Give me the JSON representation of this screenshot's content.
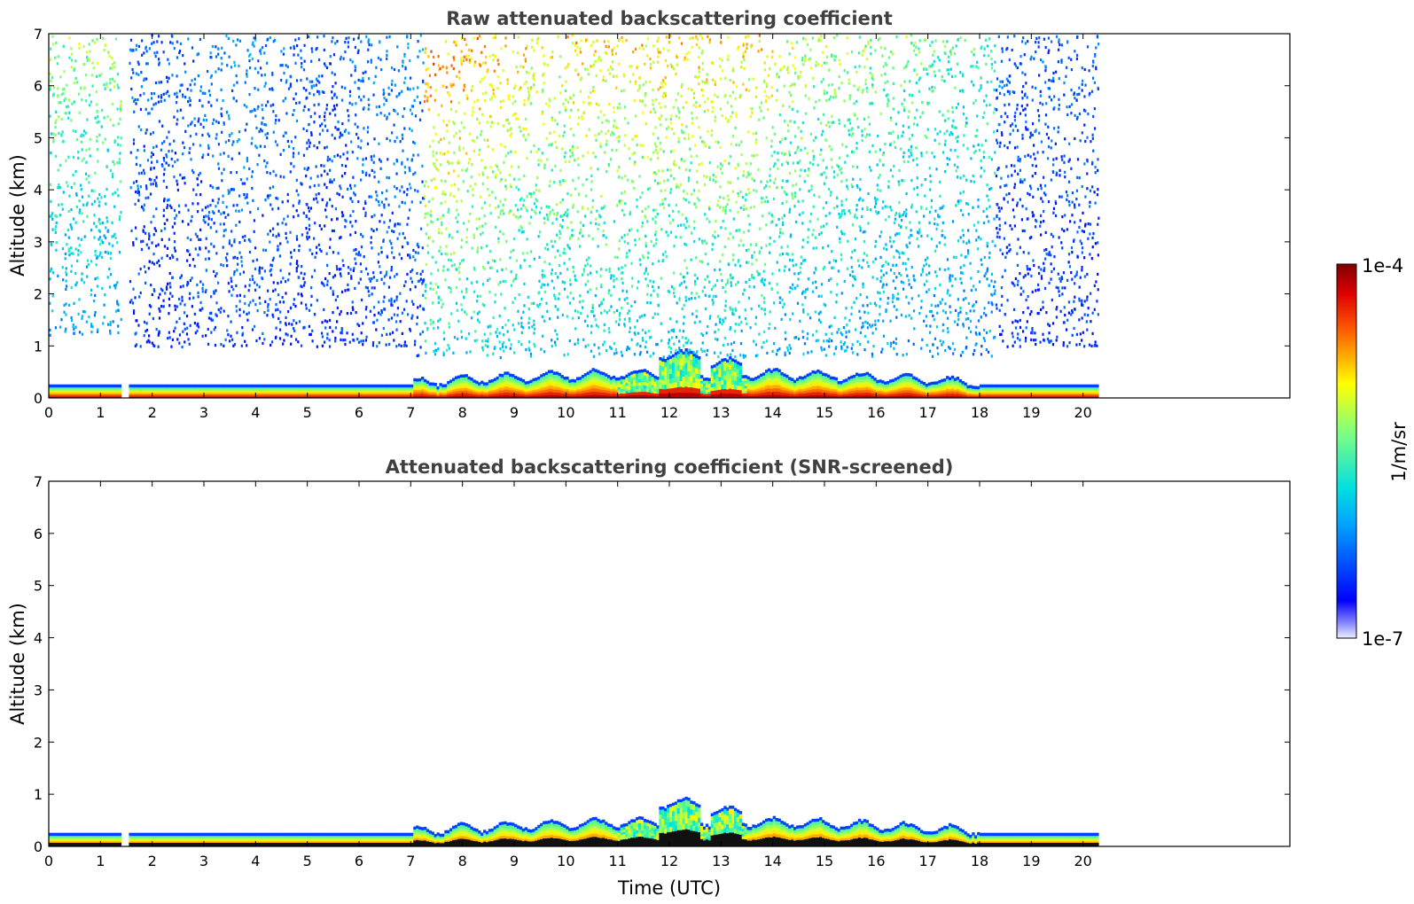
{
  "chart_data": [
    {
      "type": "heatmap",
      "title": "Raw attenuated backscattering coefficient",
      "xlabel": "",
      "ylabel": "Altitude (km)",
      "xlim": [
        0,
        24
      ],
      "ylim": [
        0,
        7
      ],
      "x_ticks": [
        "0",
        "1",
        "2",
        "3",
        "4",
        "5",
        "6",
        "7",
        "8",
        "9",
        "10",
        "11",
        "12",
        "13",
        "14",
        "15",
        "16",
        "17",
        "18",
        "19",
        "20"
      ],
      "y_ticks": [
        "0",
        "1",
        "2",
        "3",
        "4",
        "5",
        "6",
        "7"
      ],
      "data_time_range": [
        0,
        20.3
      ],
      "gap_time_range": [
        1.4,
        1.55
      ],
      "grid": false
    },
    {
      "type": "heatmap",
      "title": "Attenuated backscattering coefficient (SNR-screened)",
      "xlabel": "Time (UTC)",
      "ylabel": "Altitude (km)",
      "xlim": [
        0,
        24
      ],
      "ylim": [
        0,
        7
      ],
      "x_ticks": [
        "0",
        "1",
        "2",
        "3",
        "4",
        "5",
        "6",
        "7",
        "8",
        "9",
        "10",
        "11",
        "12",
        "13",
        "14",
        "15",
        "16",
        "17",
        "18",
        "19",
        "20"
      ],
      "y_ticks": [
        "0",
        "1",
        "2",
        "3",
        "4",
        "5",
        "6",
        "7"
      ],
      "data_time_range": [
        0,
        20.3
      ],
      "gap_time_range": [
        1.4,
        1.55
      ],
      "grid": false
    }
  ],
  "colorbar": {
    "label": "1/m/sr",
    "min_label": "1e-7",
    "max_label": "1e-4",
    "colormap": "jet",
    "scale": "log"
  },
  "colors": {
    "title": "#404040",
    "axis": "#000000",
    "background": "#ffffff"
  }
}
